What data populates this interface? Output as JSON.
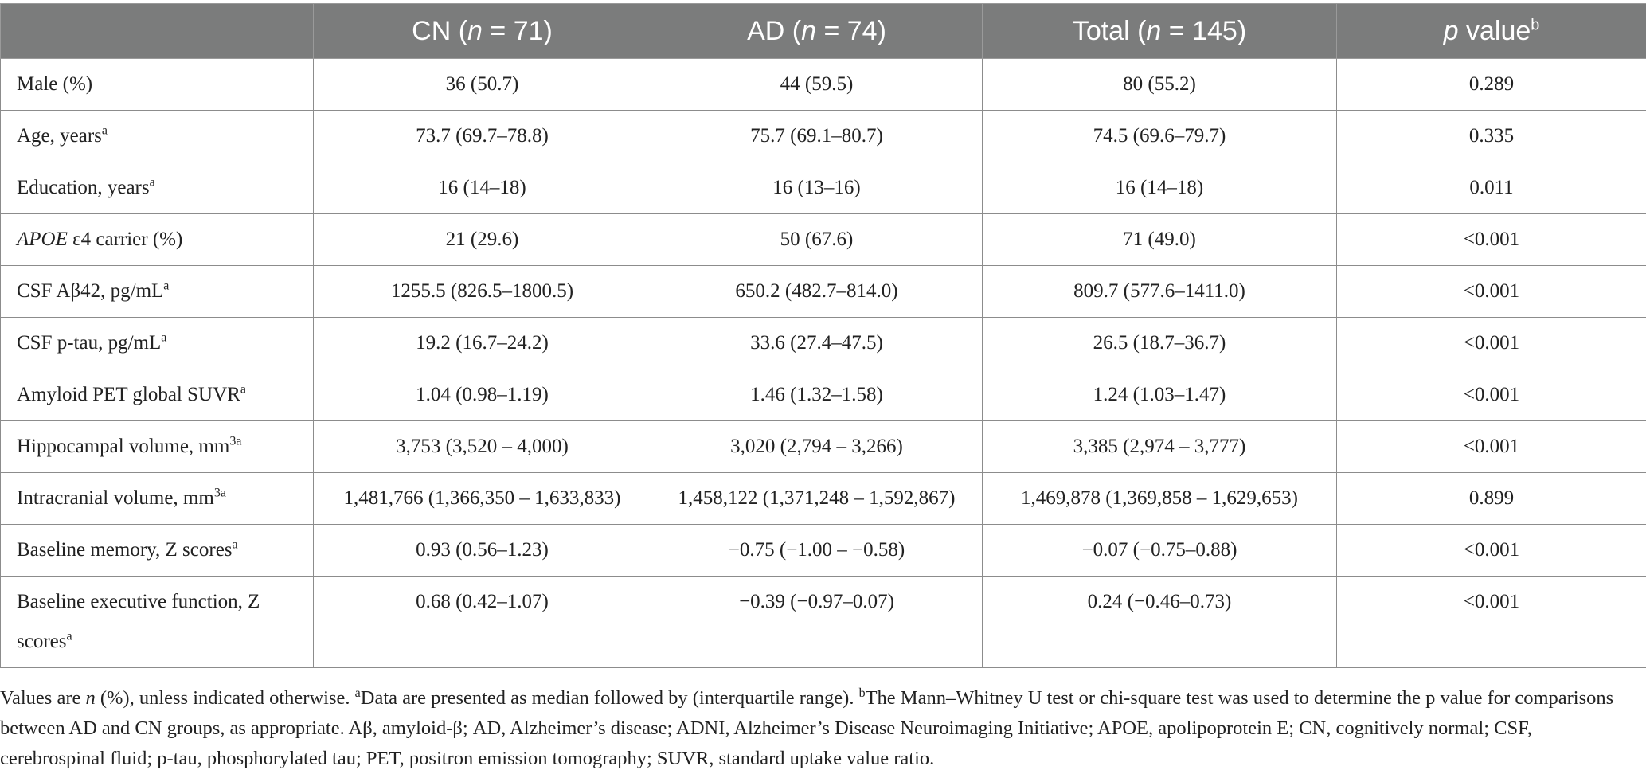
{
  "header": {
    "cn": {
      "pre": "CN (",
      "n": "n",
      "post": " = 71)"
    },
    "ad": {
      "pre": "AD (",
      "n": "n",
      "post": " = 74)"
    },
    "total": {
      "pre": "Total (",
      "n": "n",
      "post": " = 145)"
    },
    "p": {
      "p": "p",
      "post": " value",
      "sup": "b"
    }
  },
  "rows": [
    {
      "label": "Male (%)",
      "label_sup": "",
      "cn": "36 (50.7)",
      "ad": "44 (59.5)",
      "total": "80 (55.2)",
      "p": "0.289"
    },
    {
      "label": "Age, years",
      "label_sup": "a",
      "cn": "73.7 (69.7–78.8)",
      "ad": "75.7 (69.1–80.7)",
      "total": "74.5 (69.6–79.7)",
      "p": "0.335"
    },
    {
      "label": "Education, years",
      "label_sup": "a",
      "cn": "16 (14–18)",
      "ad": "16 (13–16)",
      "total": "16 (14–18)",
      "p": "0.011"
    },
    {
      "label_italic": "APOE",
      "label": " ε4 carrier (%)",
      "label_sup": "",
      "cn": "21 (29.6)",
      "ad": "50 (67.6)",
      "total": "71 (49.0)",
      "p": "<0.001"
    },
    {
      "label": "CSF Aβ42, pg/mL",
      "label_sup": "a",
      "cn": "1255.5 (826.5–1800.5)",
      "ad": "650.2 (482.7–814.0)",
      "total": "809.7 (577.6–1411.0)",
      "p": "<0.001"
    },
    {
      "label": "CSF p-tau, pg/mL",
      "label_sup": "a",
      "cn": "19.2 (16.7–24.2)",
      "ad": "33.6 (27.4–47.5)",
      "total": "26.5 (18.7–36.7)",
      "p": "<0.001"
    },
    {
      "label": "Amyloid PET global SUVR",
      "label_sup": "a",
      "cn": "1.04 (0.98–1.19)",
      "ad": "1.46 (1.32–1.58)",
      "total": "1.24 (1.03–1.47)",
      "p": "<0.001"
    },
    {
      "label": "Hippocampal volume, mm",
      "label_sup": "3a",
      "cn": "3,753 (3,520 – 4,000)",
      "ad": "3,020 (2,794 – 3,266)",
      "total": "3,385 (2,974 – 3,777)",
      "p": "<0.001"
    },
    {
      "label": "Intracranial volume, mm",
      "label_sup": "3a",
      "cn": "1,481,766 (1,366,350 – 1,633,833)",
      "ad": "1,458,122 (1,371,248 – 1,592,867)",
      "total": "1,469,878 (1,369,858 – 1,629,653)",
      "p": "0.899"
    },
    {
      "label": "Baseline memory, Z scores",
      "label_sup": "a",
      "cn": "0.93 (0.56–1.23)",
      "ad": "−0.75 (−1.00 – −0.58)",
      "total": "−0.07 (−0.75–0.88)",
      "p": "<0.001"
    },
    {
      "label": "Baseline executive function, Z scores",
      "label_sup": "a",
      "cn": "0.68 (0.42–1.07)",
      "ad": "−0.39 (−0.97–0.07)",
      "total": "0.24 (−0.46–0.73)",
      "p": "<0.001"
    }
  ],
  "footnote": {
    "t1": "Values are ",
    "t1_n": "n",
    "t2": " (%), unless indicated otherwise. ",
    "sup_a": "a",
    "t3": "Data are presented as median followed by (interquartile range). ",
    "sup_b": "b",
    "t4": "The Mann–Whitney U test or chi-square test was used to determine the p value for comparisons between AD and CN groups, as appropriate. Aβ, amyloid-β; AD, Alzheimer’s disease; ADNI, Alzheimer’s Disease Neuroimaging Initiative; APOE, apolipoprotein E; CN, cognitively normal; CSF, cerebrospinal fluid; p-tau, phosphorylated tau; PET, positron emission tomography; SUVR, standard uptake value ratio."
  }
}
